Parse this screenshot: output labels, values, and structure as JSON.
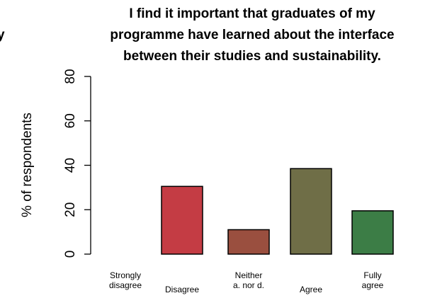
{
  "clipped_left_text": "y",
  "chart_data": {
    "type": "bar",
    "title": "I find it important that graduates of my programme have learned about the interface between their studies and sustainability.",
    "title_lines": [
      "I find it important that graduates of my",
      "programme have learned about the interface",
      "between their studies and sustainability."
    ],
    "xlabel": "",
    "ylabel": "% of respondents",
    "ylim": [
      0,
      80
    ],
    "yticks": [
      "0",
      "20",
      "40",
      "60",
      "80"
    ],
    "grid": false,
    "categories": [
      "Strongly disagree",
      "Disagree",
      "Neither a. nor d.",
      "Agree",
      "Fully agree"
    ],
    "category_label_lines": [
      [
        "Strongly",
        "disagree"
      ],
      [
        "Disagree"
      ],
      [
        "Neither",
        "a. nor d."
      ],
      [
        "Agree"
      ],
      [
        "Fully",
        "agree"
      ]
    ],
    "values": [
      0,
      30.5,
      11,
      38.5,
      19.5
    ],
    "colors": [
      "#c43c44",
      "#c43c44",
      "#9a4f3f",
      "#6f6e47",
      "#3c7d46"
    ]
  }
}
